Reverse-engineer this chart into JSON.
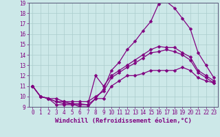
{
  "xlabel": "Windchill (Refroidissement éolien,°C)",
  "xlim": [
    -0.5,
    23.5
  ],
  "ylim": [
    9,
    19
  ],
  "xticks": [
    0,
    1,
    2,
    3,
    4,
    5,
    6,
    7,
    8,
    9,
    10,
    11,
    12,
    13,
    14,
    15,
    16,
    17,
    18,
    19,
    20,
    21,
    22,
    23
  ],
  "yticks": [
    9,
    10,
    11,
    12,
    13,
    14,
    15,
    16,
    17,
    18,
    19
  ],
  "bg_color": "#cce8e8",
  "line_color": "#800080",
  "grid_color": "#aacccc",
  "spine_color": "#555577",
  "lines": [
    [
      11.0,
      10.0,
      9.8,
      9.5,
      9.3,
      9.3,
      9.3,
      9.2,
      9.8,
      9.8,
      11.0,
      11.5,
      12.0,
      12.0,
      12.2,
      12.5,
      12.5,
      12.5,
      12.5,
      12.8,
      12.5,
      11.8,
      11.5,
      11.3
    ],
    [
      11.0,
      10.0,
      9.8,
      9.8,
      9.5,
      9.5,
      9.5,
      9.5,
      10.0,
      10.5,
      11.8,
      12.3,
      12.8,
      13.2,
      13.7,
      14.2,
      14.3,
      14.5,
      14.3,
      14.0,
      13.5,
      12.3,
      11.8,
      11.3
    ],
    [
      11.0,
      10.0,
      9.8,
      9.5,
      9.5,
      9.3,
      9.0,
      9.0,
      9.8,
      10.7,
      12.5,
      13.3,
      14.5,
      15.3,
      16.3,
      17.2,
      18.9,
      19.1,
      18.5,
      17.5,
      16.5,
      14.2,
      13.0,
      11.8
    ],
    [
      11.0,
      10.0,
      9.8,
      9.2,
      9.2,
      9.2,
      9.2,
      9.2,
      12.0,
      11.0,
      12.0,
      12.5,
      13.0,
      13.5,
      14.0,
      14.5,
      14.8,
      14.7,
      14.7,
      14.2,
      13.8,
      12.5,
      12.0,
      11.5
    ]
  ],
  "xlabel_fontsize": 6.5,
  "tick_fontsize": 5.5,
  "marker_size": 2.5,
  "line_width": 0.9
}
